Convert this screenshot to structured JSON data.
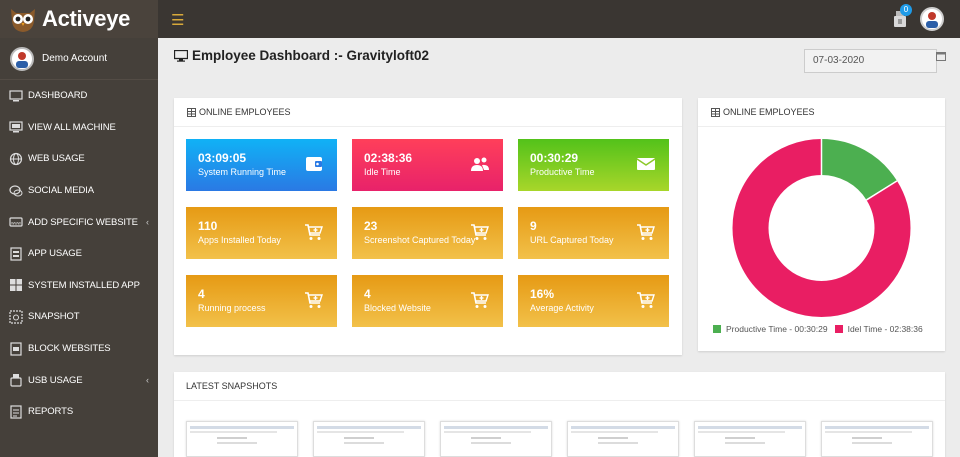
{
  "brand": {
    "name": "Activeye"
  },
  "topbar": {
    "notification_count": "0"
  },
  "sidebar": {
    "account_name": "Demo Account",
    "items": [
      {
        "label": "DASHBOARD",
        "icon": "monitor-icon",
        "has_submenu": false
      },
      {
        "label": "VIEW ALL MACHINE",
        "icon": "machine-icon",
        "has_submenu": false
      },
      {
        "label": "WEB USAGE",
        "icon": "globe-icon",
        "has_submenu": false
      },
      {
        "label": "SOCIAL MEDIA",
        "icon": "chat-icon",
        "has_submenu": false
      },
      {
        "label": "ADD SPECIFIC WEBSITE",
        "icon": "www-icon",
        "has_submenu": true
      },
      {
        "label": "APP USAGE",
        "icon": "app-icon",
        "has_submenu": false
      },
      {
        "label": "SYSTEM INSTALLED APP",
        "icon": "windows-icon",
        "has_submenu": false
      },
      {
        "label": "SNAPSHOT",
        "icon": "camera-icon",
        "has_submenu": false
      },
      {
        "label": "BLOCK WEBSITES",
        "icon": "block-icon",
        "has_submenu": false
      },
      {
        "label": "USB USAGE",
        "icon": "usb-icon",
        "has_submenu": true
      },
      {
        "label": "REPORTS",
        "icon": "report-icon",
        "has_submenu": false
      }
    ]
  },
  "page": {
    "title": "Employee Dashboard :- Gravityloft02",
    "date": "07-03-2020"
  },
  "stats_panel": {
    "heading": "ONLINE EMPLOYEES",
    "tiles": [
      {
        "value": "03:09:05",
        "label": "System Running Time",
        "icon": "wallet-icon",
        "color": "blue"
      },
      {
        "value": "02:38:36",
        "label": "Idle Time",
        "icon": "users-icon",
        "color": "pink"
      },
      {
        "value": "00:30:29",
        "label": "Productive Time",
        "icon": "envelope-icon",
        "color": "green"
      },
      {
        "value": "110",
        "label": "Apps Installed Today",
        "icon": "cart-icon",
        "color": "orange"
      },
      {
        "value": "23",
        "label": "Screenshot Captured Today",
        "icon": "cart-icon",
        "color": "orange"
      },
      {
        "value": "9",
        "label": "URL Captured Today",
        "icon": "cart-icon",
        "color": "orange"
      },
      {
        "value": "4",
        "label": "Running process",
        "icon": "cart-icon",
        "color": "orange"
      },
      {
        "value": "4",
        "label": "Blocked Website",
        "icon": "cart-icon",
        "color": "orange"
      },
      {
        "value": "16%",
        "label": "Average Activity",
        "icon": "cart-icon",
        "color": "orange"
      }
    ]
  },
  "chart_panel": {
    "heading": "ONLINE EMPLOYEES"
  },
  "chart_data": {
    "type": "pie",
    "donut": true,
    "title": "",
    "slices": [
      {
        "name": "Productive Time - 00:30:29",
        "value": 1829,
        "color": "#4caf50"
      },
      {
        "name": "Idel Time - 02:38:36",
        "value": 9516,
        "color": "#e91e63"
      }
    ],
    "legend_position": "bottom"
  },
  "snapshots": {
    "heading": "LATEST SNAPSHOTS",
    "count": 6
  },
  "colors": {
    "topbar": "#3a3632",
    "sidebar": "#45403a",
    "accent": "#d8a93a"
  }
}
